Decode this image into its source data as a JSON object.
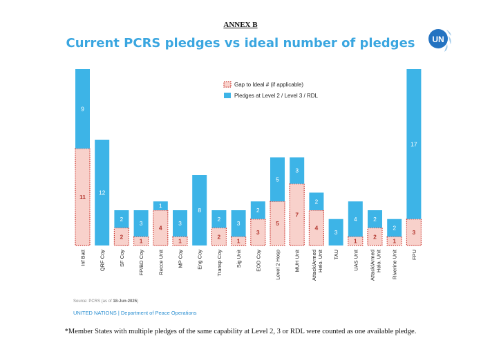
{
  "header": {
    "annex": "ANNEX B",
    "title": "Current PCRS pledges vs ideal number of pledges",
    "logo_text": "UN"
  },
  "chart_data": {
    "type": "bar",
    "stacked": true,
    "title": "Current PCRS pledges vs ideal number of pledges",
    "categories": [
      "Inf Batt",
      "QRF Coy",
      "SF Coy",
      "FP/BD Coy",
      "Recce Unit",
      "MP Coy",
      "Eng Coy",
      "Transp Coy",
      "Sig Unit",
      "EOD Coy",
      "Level 2 Hosp",
      "MUH Unit",
      "Attack/Armed Helo. Unit",
      "TAU",
      "UAS Unit",
      "Airfield Support Unit",
      "Riverine Unit",
      "FPU"
    ],
    "series": [
      {
        "name": "Gap to Ideal # (if applicable)",
        "values": [
          11,
          0,
          2,
          1,
          4,
          1,
          0,
          2,
          1,
          3,
          5,
          7,
          4,
          0,
          1,
          2,
          1,
          3
        ],
        "color": "#f8d1cb",
        "border": "#cc3a33"
      },
      {
        "name": "Pledges at Level 2 / Level 3 / RDL",
        "values": [
          9,
          12,
          2,
          3,
          1,
          3,
          8,
          2,
          3,
          2,
          5,
          3,
          2,
          3,
          4,
          2,
          2,
          17
        ],
        "color": "#3db4e7"
      }
    ],
    "ylim": [
      0,
      20
    ],
    "grid": false,
    "legend_position": "top-right"
  },
  "source": {
    "prefix": "Source: PCRS (as of ",
    "date": "18-Jun-2025",
    "suffix": ")"
  },
  "org": "UNITED NATIONS | Department of Peace Operations",
  "footnote": "*Member States with multiple pledges of the same capability at Level 2, 3 or RDL were counted as one available pledge."
}
